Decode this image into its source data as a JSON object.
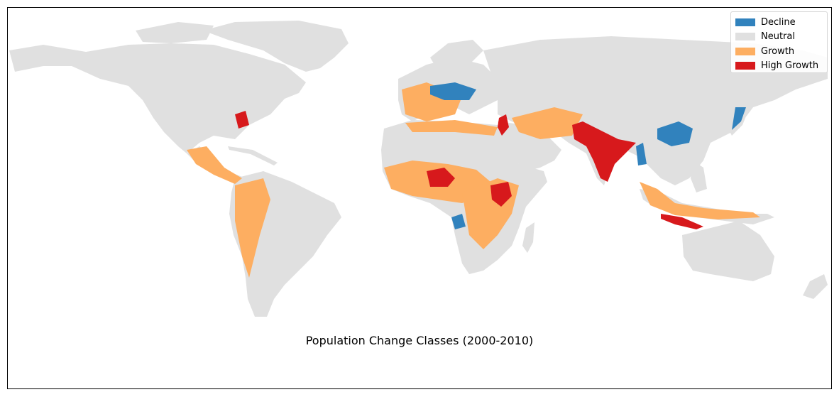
{
  "map": {
    "title": "Population Change Classes (2000-2010)",
    "background_color": "#ffffff",
    "land_color": "#e0e0e0",
    "legend": {
      "placement": "top-right",
      "items": [
        {
          "label": "Decline",
          "color": "#3182bd"
        },
        {
          "label": "Neutral",
          "color": "#e0e0e0"
        },
        {
          "label": "Growth",
          "color": "#fdae61"
        },
        {
          "label": "High Growth",
          "color": "#d7191c"
        }
      ]
    },
    "regions": [
      {
        "class": "Growth",
        "area": "West Africa"
      },
      {
        "class": "Growth",
        "area": "East Africa"
      },
      {
        "class": "High Growth",
        "area": "Nigeria"
      },
      {
        "class": "High Growth",
        "area": "Nile Valley"
      },
      {
        "class": "High Growth",
        "area": "India"
      },
      {
        "class": "High Growth",
        "area": "Pakistan"
      },
      {
        "class": "High Growth",
        "area": "Java"
      },
      {
        "class": "Decline",
        "area": "Eastern Europe"
      },
      {
        "class": "Decline",
        "area": "Central China"
      },
      {
        "class": "Decline",
        "area": "Japan"
      },
      {
        "class": "Growth",
        "area": "Central America"
      },
      {
        "class": "Growth",
        "area": "Andes"
      },
      {
        "class": "Growth",
        "area": "Southeast Asia"
      },
      {
        "class": "Decline",
        "area": "Central Africa (west)"
      }
    ]
  }
}
